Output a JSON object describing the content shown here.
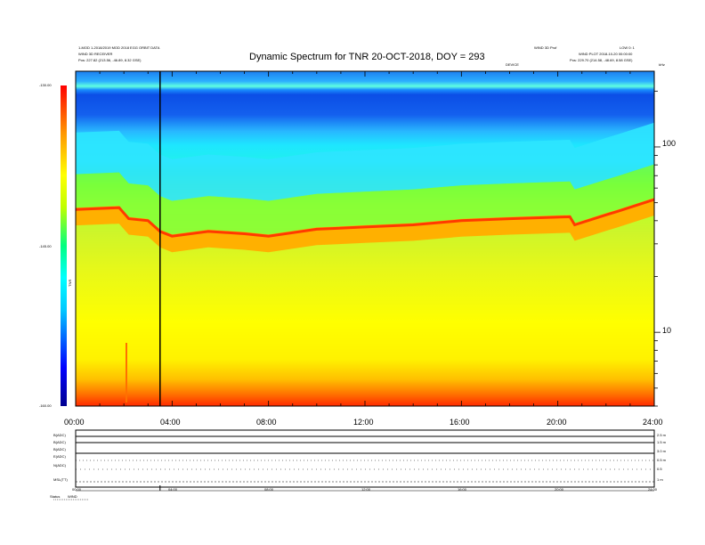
{
  "header": {
    "left_line1": "1-MOD 1-2018/2019 MOD 2018 EGG ORBIT DATA",
    "left_line2": "WIND 3D RECEIVER",
    "left_line3": "Pos:    227.82 (213.56, -46.89, 8.32 GSE)",
    "right_line1": "WIND 3D Prof",
    "right_line2": "WIND PLOT 2018-10-20 00:00:00",
    "right_line3": "Pos:    229.70 (214.58, -48.69, 8.58 GSE)",
    "right_corner": "LOW 0: 1",
    "center_small": "DEVICE",
    "khz_label": "kHz"
  },
  "chart_data": {
    "type": "heatmap",
    "title": "Dynamic Spectrum for TNR 20-OCT-2018, DOY = 293",
    "x_tick_labels": [
      "00:00",
      "04:00",
      "08:00",
      "12:00",
      "16:00",
      "20:00",
      "24:00"
    ],
    "x_range_hours": [
      0,
      24
    ],
    "y_axis": {
      "scale": "log",
      "unit_label": "kHz",
      "ticks": [
        "100",
        "10"
      ],
      "range_khz": [
        4,
        256
      ]
    },
    "colorbar": {
      "label": "TNR",
      "ticks": [
        "-130.00",
        "-145.00",
        "-160.00"
      ],
      "range": [
        -160,
        -130
      ],
      "colormap": "rainbow"
    },
    "marker_line_hours": 3.5,
    "plasma_line": {
      "description_units": "kHz",
      "points": [
        [
          0,
          46
        ],
        [
          1.8,
          47
        ],
        [
          2.2,
          41
        ],
        [
          3.0,
          40
        ],
        [
          3.5,
          35
        ],
        [
          4.0,
          33
        ],
        [
          5.5,
          35
        ],
        [
          7.0,
          34
        ],
        [
          8.0,
          33
        ],
        [
          10,
          36
        ],
        [
          12,
          37
        ],
        [
          14,
          38
        ],
        [
          16,
          40
        ],
        [
          18,
          41
        ],
        [
          20.5,
          42
        ],
        [
          20.7,
          38
        ],
        [
          22.0,
          43
        ],
        [
          22.5,
          45
        ],
        [
          24,
          52
        ]
      ]
    }
  },
  "lower_panel": {
    "row_labels": [
      "B(ADC)",
      "B(ADC)",
      "B(ADC)",
      "E(ADC)",
      "N(ADC)",
      "MSL(TT)"
    ],
    "right_labels": [
      "2.5 m",
      "1.5 m",
      "3.0 m",
      "0.5 m",
      "0.5",
      "1 m"
    ],
    "time_labels": [
      "00:00",
      "04:00",
      "08:00",
      "12:00",
      "16:00",
      "20:00",
      "24:00"
    ],
    "footer_label": "Status",
    "footer_value": "WIND"
  }
}
